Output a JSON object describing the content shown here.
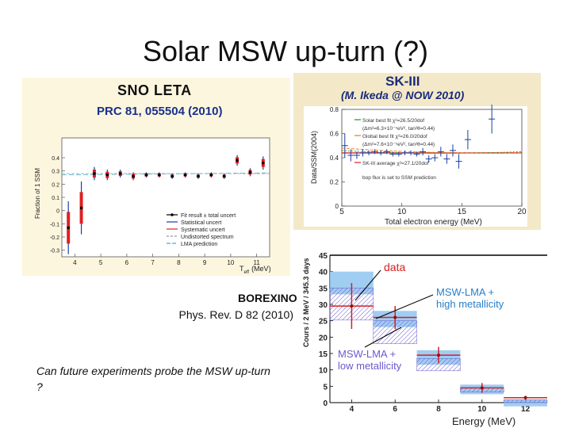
{
  "slide": {
    "title": "Solar MSW up-turn (?)",
    "question": "Can future experiments probe the MSW up-turn ?"
  },
  "sno": {
    "title": "SNO LETA",
    "reference": "PRC 81, 055504 (2010)",
    "ylabel": "Fraction of 1 SSM",
    "xlabel": "T",
    "xlabel_sub": "eff",
    "xunit": "(MeV)",
    "legend": [
      "Fit result ± total uncert",
      "Statistical uncert",
      "Systematic uncert",
      "Undistorted spectrum",
      "LMA prediction"
    ]
  },
  "sk": {
    "title": "SK-III",
    "reference": "(M. Ikeda @ NOW 2010)",
    "ylabel": "Data/SSM(2004)",
    "xlabel": "Total electron energy (MeV)",
    "legend": [
      "Solar best fit χ²=26.5/20dof",
      "(Δm²=6.3×10⁻⁵eV², tan²θ=0.44)",
      "Global best fit χ²=26.0/20dof",
      "(Δm²=7.6×10⁻⁵eV², tan²θ=0.44)",
      "SK-III average χ²=27.1/20dof",
      "bop flux is set to SSM prediction"
    ]
  },
  "borexino": {
    "title": "BOREXINO",
    "reference": "Phys. Rev. D 82 (2010)",
    "ylabel": "Cours / 2 MeV / 345.3 days",
    "xlabel": "Energy (MeV)",
    "data_label": "data",
    "high_label_1": "MSW-LMA +",
    "high_label_2": "high metallicity",
    "low_label_1": "MSW-LMA +",
    "low_label_2": "low metallicity"
  },
  "colors": {
    "data_red": "#d62020",
    "band_blue": "#8fc4f0",
    "band_hatch": "#6a5acd",
    "accent": "#1b2f8a",
    "sno_bg": "#fcf6de",
    "sk_bg": "#f3e9c8"
  },
  "chart_data": [
    {
      "type": "scatter",
      "title": "SNO LETA",
      "ylabel": "Fraction of 1 SSM",
      "xlabel": "T_eff (MeV)",
      "xlim": [
        3.5,
        11.5
      ],
      "ylim": [
        -0.35,
        0.55
      ],
      "x_ticks": [
        4,
        5,
        6,
        7,
        8,
        9,
        10,
        11
      ],
      "y_ticks": [
        -0.3,
        -0.2,
        -0.1,
        0,
        0.1,
        0.2,
        0.3,
        0.4
      ],
      "undistorted": 0.28,
      "x": [
        3.75,
        4.25,
        4.75,
        5.25,
        5.75,
        6.25,
        6.75,
        7.25,
        7.75,
        8.25,
        8.75,
        9.25,
        9.75,
        10.25,
        10.75,
        11.25
      ],
      "y": [
        -0.13,
        0.02,
        0.28,
        0.27,
        0.28,
        0.26,
        0.27,
        0.27,
        0.26,
        0.27,
        0.26,
        0.27,
        0.26,
        0.38,
        0.29,
        0.36
      ],
      "err": [
        0.2,
        0.2,
        0.05,
        0.04,
        0.03,
        0.03,
        0.02,
        0.02,
        0.02,
        0.02,
        0.02,
        0.02,
        0.02,
        0.04,
        0.03,
        0.05
      ]
    },
    {
      "type": "scatter",
      "title": "SK-III",
      "ylabel": "Data/SSM(2004)",
      "xlabel": "Total electron energy (MeV)",
      "xlim": [
        5,
        20
      ],
      "ylim": [
        0,
        0.8
      ],
      "x_ticks": [
        5,
        10,
        15,
        20
      ],
      "y_ticks": [
        0,
        0.2,
        0.4,
        0.6,
        0.8
      ],
      "average": 0.44,
      "x": [
        5.25,
        5.75,
        6.25,
        6.75,
        7.25,
        7.75,
        8.25,
        8.75,
        9.25,
        9.75,
        10.25,
        10.75,
        11.25,
        11.75,
        12.25,
        12.75,
        13.25,
        13.75,
        14.25,
        14.75,
        15.5,
        17.5
      ],
      "y": [
        0.5,
        0.42,
        0.42,
        0.44,
        0.44,
        0.45,
        0.44,
        0.45,
        0.43,
        0.43,
        0.44,
        0.44,
        0.43,
        0.45,
        0.39,
        0.4,
        0.45,
        0.39,
        0.46,
        0.37,
        0.55,
        0.72
      ],
      "err": [
        0.1,
        0.05,
        0.03,
        0.03,
        0.02,
        0.02,
        0.02,
        0.02,
        0.02,
        0.02,
        0.02,
        0.02,
        0.02,
        0.03,
        0.03,
        0.03,
        0.04,
        0.04,
        0.05,
        0.06,
        0.08,
        0.12
      ]
    },
    {
      "type": "bar",
      "title": "BOREXINO",
      "ylabel": "Cours / 2 MeV / 345.3 days",
      "xlabel": "Energy (MeV)",
      "xlim": [
        3,
        13
      ],
      "ylim": [
        0,
        45
      ],
      "x_ticks": [
        4,
        6,
        8,
        10,
        12
      ],
      "y_ticks": [
        0,
        5,
        10,
        15,
        20,
        25,
        30,
        35,
        40,
        45
      ],
      "categories": [
        "3-5",
        "5-7",
        "7-9",
        "9-11",
        "11-13"
      ],
      "series": [
        {
          "name": "data",
          "values": [
            29.5,
            26,
            14.5,
            4.5,
            1.5
          ],
          "err": [
            7,
            3.5,
            2.5,
            1.5,
            0.6
          ]
        },
        {
          "name": "MSW-LMA + high metallicity",
          "values": [
            40,
            28,
            16,
            5.5,
            1.0
          ]
        },
        {
          "name": "MSW-LMA + low metallicity",
          "values": [
            35,
            25,
            13.5,
            4.5,
            0.8
          ]
        }
      ]
    }
  ]
}
